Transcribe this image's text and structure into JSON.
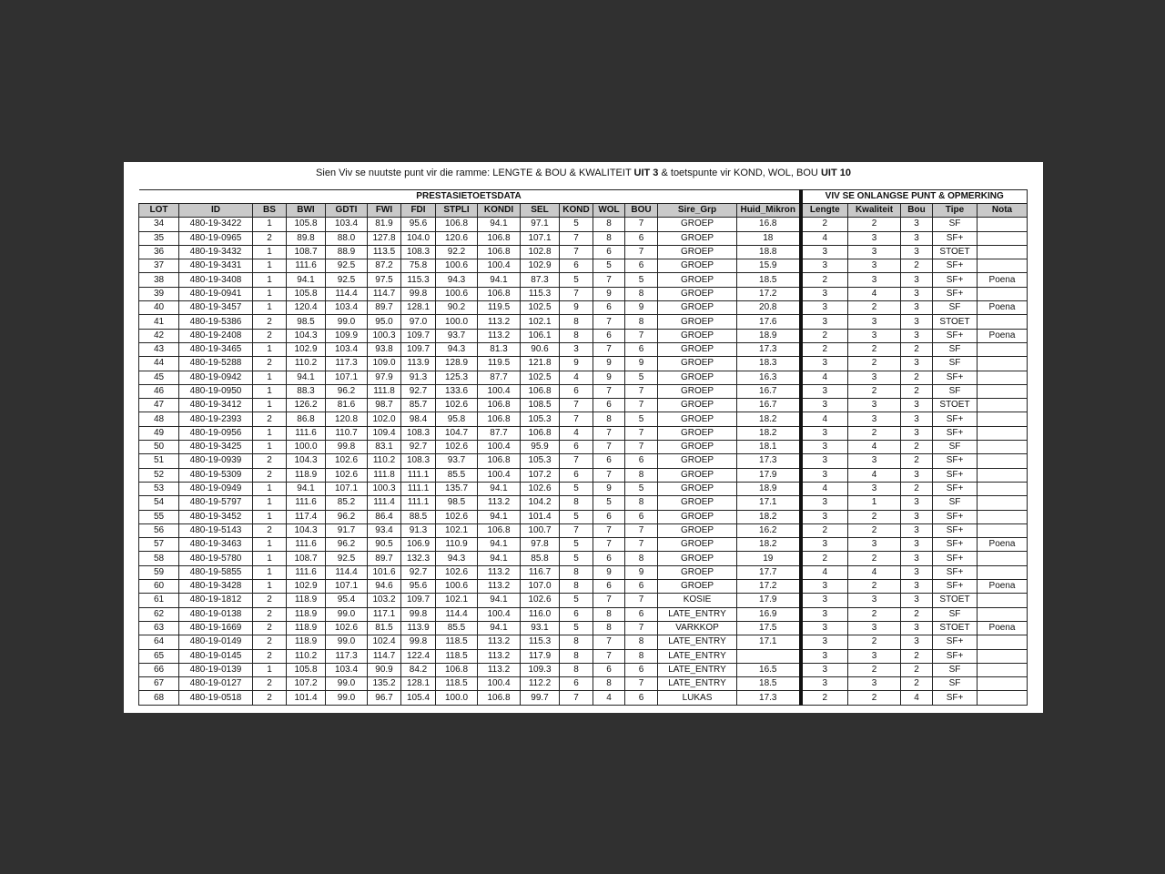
{
  "title": {
    "parts": [
      {
        "text": "Sien Viv se nuutste punt vir die ramme: LENGTE & BOU & KWALITEIT ",
        "bold": false
      },
      {
        "text": "UIT 3",
        "bold": true
      },
      {
        "text": " & toetspunte vir KOND, WOL, BOU ",
        "bold": false
      },
      {
        "text": "UIT 10",
        "bold": true
      }
    ]
  },
  "group_headers": {
    "left": "PRESTASIETOETSDATA",
    "right": "VIV SE ONLANGSE PUNT & OPMERKING"
  },
  "columns": [
    "LOT",
    "ID",
    "BS",
    "BWI",
    "GDTI",
    "FWI",
    "FDI",
    "STPLI",
    "KONDI",
    "SEL",
    "KOND",
    "WOL",
    "BOU",
    "Sire_Grp",
    "Huid_Mikron",
    "Lengte",
    "Kwaliteit",
    "Bou",
    "Tipe",
    "Nota"
  ],
  "rows": [
    [
      "34",
      "480-19-3422",
      "1",
      "105.8",
      "103.4",
      "81.9",
      "95.6",
      "106.8",
      "94.1",
      "97.1",
      "5",
      "8",
      "7",
      "GROEP",
      "16.8",
      "2",
      "2",
      "3",
      "SF",
      ""
    ],
    [
      "35",
      "480-19-0965",
      "2",
      "89.8",
      "88.0",
      "127.8",
      "104.0",
      "120.6",
      "106.8",
      "107.1",
      "7",
      "8",
      "6",
      "GROEP",
      "18",
      "4",
      "3",
      "3",
      "SF+",
      ""
    ],
    [
      "36",
      "480-19-3432",
      "1",
      "108.7",
      "88.9",
      "113.5",
      "108.3",
      "92.2",
      "106.8",
      "102.8",
      "7",
      "6",
      "7",
      "GROEP",
      "18.8",
      "3",
      "3",
      "3",
      "STOET",
      ""
    ],
    [
      "37",
      "480-19-3431",
      "1",
      "111.6",
      "92.5",
      "87.2",
      "75.8",
      "100.6",
      "100.4",
      "102.9",
      "6",
      "5",
      "6",
      "GROEP",
      "15.9",
      "3",
      "3",
      "2",
      "SF+",
      ""
    ],
    [
      "38",
      "480-19-3408",
      "1",
      "94.1",
      "92.5",
      "97.5",
      "115.3",
      "94.3",
      "94.1",
      "87.3",
      "5",
      "7",
      "5",
      "GROEP",
      "18.5",
      "2",
      "3",
      "3",
      "SF+",
      "Poena"
    ],
    [
      "39",
      "480-19-0941",
      "1",
      "105.8",
      "114.4",
      "114.7",
      "99.8",
      "100.6",
      "106.8",
      "115.3",
      "7",
      "9",
      "8",
      "GROEP",
      "17.2",
      "3",
      "4",
      "3",
      "SF+",
      ""
    ],
    [
      "40",
      "480-19-3457",
      "1",
      "120.4",
      "103.4",
      "89.7",
      "128.1",
      "90.2",
      "119.5",
      "102.5",
      "9",
      "6",
      "9",
      "GROEP",
      "20.8",
      "3",
      "2",
      "3",
      "SF",
      "Poena"
    ],
    [
      "41",
      "480-19-5386",
      "2",
      "98.5",
      "99.0",
      "95.0",
      "97.0",
      "100.0",
      "113.2",
      "102.1",
      "8",
      "7",
      "8",
      "GROEP",
      "17.6",
      "3",
      "3",
      "3",
      "STOET",
      ""
    ],
    [
      "42",
      "480-19-2408",
      "2",
      "104.3",
      "109.9",
      "100.3",
      "109.7",
      "93.7",
      "113.2",
      "106.1",
      "8",
      "6",
      "7",
      "GROEP",
      "18.9",
      "2",
      "3",
      "3",
      "SF+",
      "Poena"
    ],
    [
      "43",
      "480-19-3465",
      "1",
      "102.9",
      "103.4",
      "93.8",
      "109.7",
      "94.3",
      "81.3",
      "90.6",
      "3",
      "7",
      "6",
      "GROEP",
      "17.3",
      "2",
      "2",
      "2",
      "SF",
      ""
    ],
    [
      "44",
      "480-19-5288",
      "2",
      "110.2",
      "117.3",
      "109.0",
      "113.9",
      "128.9",
      "119.5",
      "121.8",
      "9",
      "9",
      "9",
      "GROEP",
      "18.3",
      "3",
      "2",
      "3",
      "SF",
      ""
    ],
    [
      "45",
      "480-19-0942",
      "1",
      "94.1",
      "107.1",
      "97.9",
      "91.3",
      "125.3",
      "87.7",
      "102.5",
      "4",
      "9",
      "5",
      "GROEP",
      "16.3",
      "4",
      "3",
      "2",
      "SF+",
      ""
    ],
    [
      "46",
      "480-19-0950",
      "1",
      "88.3",
      "96.2",
      "111.8",
      "92.7",
      "133.6",
      "100.4",
      "106.8",
      "6",
      "7",
      "7",
      "GROEP",
      "16.7",
      "3",
      "2",
      "2",
      "SF",
      ""
    ],
    [
      "47",
      "480-19-3412",
      "1",
      "126.2",
      "81.6",
      "98.7",
      "85.7",
      "102.6",
      "106.8",
      "108.5",
      "7",
      "6",
      "7",
      "GROEP",
      "16.7",
      "3",
      "3",
      "3",
      "STOET",
      ""
    ],
    [
      "48",
      "480-19-2393",
      "2",
      "86.8",
      "120.8",
      "102.0",
      "98.4",
      "95.8",
      "106.8",
      "105.3",
      "7",
      "8",
      "5",
      "GROEP",
      "18.2",
      "4",
      "3",
      "3",
      "SF+",
      ""
    ],
    [
      "49",
      "480-19-0956",
      "1",
      "111.6",
      "110.7",
      "109.4",
      "108.3",
      "104.7",
      "87.7",
      "106.8",
      "4",
      "7",
      "7",
      "GROEP",
      "18.2",
      "3",
      "2",
      "3",
      "SF+",
      ""
    ],
    [
      "50",
      "480-19-3425",
      "1",
      "100.0",
      "99.8",
      "83.1",
      "92.7",
      "102.6",
      "100.4",
      "95.9",
      "6",
      "7",
      "7",
      "GROEP",
      "18.1",
      "3",
      "4",
      "2",
      "SF",
      ""
    ],
    [
      "51",
      "480-19-0939",
      "2",
      "104.3",
      "102.6",
      "110.2",
      "108.3",
      "93.7",
      "106.8",
      "105.3",
      "7",
      "6",
      "6",
      "GROEP",
      "17.3",
      "3",
      "3",
      "2",
      "SF+",
      ""
    ],
    [
      "52",
      "480-19-5309",
      "2",
      "118.9",
      "102.6",
      "111.8",
      "111.1",
      "85.5",
      "100.4",
      "107.2",
      "6",
      "7",
      "8",
      "GROEP",
      "17.9",
      "3",
      "4",
      "3",
      "SF+",
      ""
    ],
    [
      "53",
      "480-19-0949",
      "1",
      "94.1",
      "107.1",
      "100.3",
      "111.1",
      "135.7",
      "94.1",
      "102.6",
      "5",
      "9",
      "5",
      "GROEP",
      "18.9",
      "4",
      "3",
      "2",
      "SF+",
      ""
    ],
    [
      "54",
      "480-19-5797",
      "1",
      "111.6",
      "85.2",
      "111.4",
      "111.1",
      "98.5",
      "113.2",
      "104.2",
      "8",
      "5",
      "8",
      "GROEP",
      "17.1",
      "3",
      "1",
      "3",
      "SF",
      ""
    ],
    [
      "55",
      "480-19-3452",
      "1",
      "117.4",
      "96.2",
      "86.4",
      "88.5",
      "102.6",
      "94.1",
      "101.4",
      "5",
      "6",
      "6",
      "GROEP",
      "18.2",
      "3",
      "2",
      "3",
      "SF+",
      ""
    ],
    [
      "56",
      "480-19-5143",
      "2",
      "104.3",
      "91.7",
      "93.4",
      "91.3",
      "102.1",
      "106.8",
      "100.7",
      "7",
      "7",
      "7",
      "GROEP",
      "16.2",
      "2",
      "2",
      "3",
      "SF+",
      ""
    ],
    [
      "57",
      "480-19-3463",
      "1",
      "111.6",
      "96.2",
      "90.5",
      "106.9",
      "110.9",
      "94.1",
      "97.8",
      "5",
      "7",
      "7",
      "GROEP",
      "18.2",
      "3",
      "3",
      "3",
      "SF+",
      "Poena"
    ],
    [
      "58",
      "480-19-5780",
      "1",
      "108.7",
      "92.5",
      "89.7",
      "132.3",
      "94.3",
      "94.1",
      "85.8",
      "5",
      "6",
      "8",
      "GROEP",
      "19",
      "2",
      "2",
      "3",
      "SF+",
      ""
    ],
    [
      "59",
      "480-19-5855",
      "1",
      "111.6",
      "114.4",
      "101.6",
      "92.7",
      "102.6",
      "113.2",
      "116.7",
      "8",
      "9",
      "9",
      "GROEP",
      "17.7",
      "4",
      "4",
      "3",
      "SF+",
      ""
    ],
    [
      "60",
      "480-19-3428",
      "1",
      "102.9",
      "107.1",
      "94.6",
      "95.6",
      "100.6",
      "113.2",
      "107.0",
      "8",
      "6",
      "6",
      "GROEP",
      "17.2",
      "3",
      "2",
      "3",
      "SF+",
      "Poena"
    ],
    [
      "61",
      "480-19-1812",
      "2",
      "118.9",
      "95.4",
      "103.2",
      "109.7",
      "102.1",
      "94.1",
      "102.6",
      "5",
      "7",
      "7",
      "KOSIE",
      "17.9",
      "3",
      "3",
      "3",
      "STOET",
      ""
    ],
    [
      "62",
      "480-19-0138",
      "2",
      "118.9",
      "99.0",
      "117.1",
      "99.8",
      "114.4",
      "100.4",
      "116.0",
      "6",
      "8",
      "6",
      "LATE_ENTRY",
      "16.9",
      "3",
      "2",
      "2",
      "SF",
      ""
    ],
    [
      "63",
      "480-19-1669",
      "2",
      "118.9",
      "102.6",
      "81.5",
      "113.9",
      "85.5",
      "94.1",
      "93.1",
      "5",
      "8",
      "7",
      "VARKKOP",
      "17.5",
      "3",
      "3",
      "3",
      "STOET",
      "Poena"
    ],
    [
      "64",
      "480-19-0149",
      "2",
      "118.9",
      "99.0",
      "102.4",
      "99.8",
      "118.5",
      "113.2",
      "115.3",
      "8",
      "7",
      "8",
      "LATE_ENTRY",
      "17.1",
      "3",
      "2",
      "3",
      "SF+",
      ""
    ],
    [
      "65",
      "480-19-0145",
      "2",
      "110.2",
      "117.3",
      "114.7",
      "122.4",
      "118.5",
      "113.2",
      "117.9",
      "8",
      "7",
      "8",
      "LATE_ENTRY",
      "",
      "3",
      "3",
      "2",
      "SF+",
      ""
    ],
    [
      "66",
      "480-19-0139",
      "1",
      "105.8",
      "103.4",
      "90.9",
      "84.2",
      "106.8",
      "113.2",
      "109.3",
      "8",
      "6",
      "6",
      "LATE_ENTRY",
      "16.5",
      "3",
      "2",
      "2",
      "SF",
      ""
    ],
    [
      "67",
      "480-19-0127",
      "2",
      "107.2",
      "99.0",
      "135.2",
      "128.1",
      "118.5",
      "100.4",
      "112.2",
      "6",
      "8",
      "7",
      "LATE_ENTRY",
      "18.5",
      "3",
      "3",
      "2",
      "SF",
      ""
    ],
    [
      "68",
      "480-19-0518",
      "2",
      "101.4",
      "99.0",
      "96.7",
      "105.4",
      "100.0",
      "106.8",
      "99.7",
      "7",
      "4",
      "6",
      "LUKAS",
      "17.3",
      "2",
      "2",
      "4",
      "SF+",
      ""
    ]
  ]
}
